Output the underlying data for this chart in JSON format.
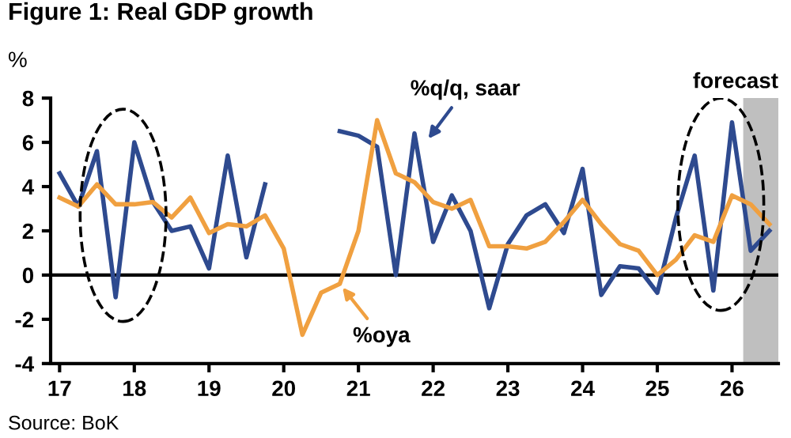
{
  "chart_data": {
    "type": "line",
    "title": "Figure 1: Real GDP growth",
    "ylabel": "%",
    "x": [
      17.0,
      17.25,
      17.5,
      17.75,
      18.0,
      18.25,
      18.5,
      18.75,
      19.0,
      19.25,
      19.5,
      19.75,
      20.0,
      20.25,
      20.5,
      20.75,
      21.0,
      21.25,
      21.5,
      21.75,
      22.0,
      22.25,
      22.5,
      22.75,
      23.0,
      23.25,
      23.5,
      23.75,
      24.0,
      24.25,
      24.5,
      24.75,
      25.0,
      25.25,
      25.5,
      25.75,
      26.0,
      26.25,
      26.5
    ],
    "series": [
      {
        "color": "#2e4a8f",
        "values": [
          4.6,
          3.1,
          5.6,
          -1.0,
          6.0,
          3.3,
          2.0,
          2.2,
          0.3,
          5.4,
          0.8,
          4.1,
          null,
          null,
          null,
          6.5,
          6.3,
          5.8,
          0.0,
          6.4,
          1.5,
          3.6,
          2.0,
          -1.5,
          1.4,
          2.7,
          3.2,
          1.9,
          4.8,
          -0.9,
          0.4,
          0.3,
          -0.8,
          2.6,
          5.4,
          -0.7,
          6.9,
          1.1,
          2.0
        ]
      },
      {
        "color": "#f0a040",
        "values": [
          3.5,
          3.1,
          4.1,
          3.2,
          3.2,
          3.3,
          2.6,
          3.5,
          1.9,
          2.3,
          2.2,
          2.7,
          1.2,
          -2.7,
          -0.8,
          -0.4,
          2.0,
          7.0,
          4.6,
          4.2,
          3.3,
          3.0,
          3.4,
          1.3,
          1.3,
          1.2,
          1.5,
          2.4,
          3.4,
          2.3,
          1.4,
          1.1,
          0.0,
          0.7,
          1.8,
          1.5,
          3.6,
          3.2,
          2.3
        ]
      }
    ],
    "xlim": [
      16.88,
      26.62
    ],
    "xticks": [
      17,
      18,
      19,
      20,
      21,
      22,
      23,
      24,
      25,
      26
    ],
    "ylim": [
      -4,
      8
    ],
    "yticks": [
      -4,
      -2,
      0,
      2,
      4,
      6,
      8
    ],
    "ref_lines": [
      {
        "axis": "y",
        "value": 0,
        "color": "#000000"
      }
    ],
    "bands": [
      {
        "axis": "x",
        "from": 26.15,
        "to": 26.62,
        "label": "forecast",
        "color": "#bfbfbf"
      }
    ],
    "annotations": [
      {
        "text": "%q/q, saar",
        "x": 21.9,
        "y": 6.0
      },
      {
        "text": "%oya",
        "x": 20.75,
        "y": -0.4
      },
      "Source: BoK"
    ],
    "grid": false,
    "legend": false,
    "marker": "none",
    "line_style": "solid"
  }
}
